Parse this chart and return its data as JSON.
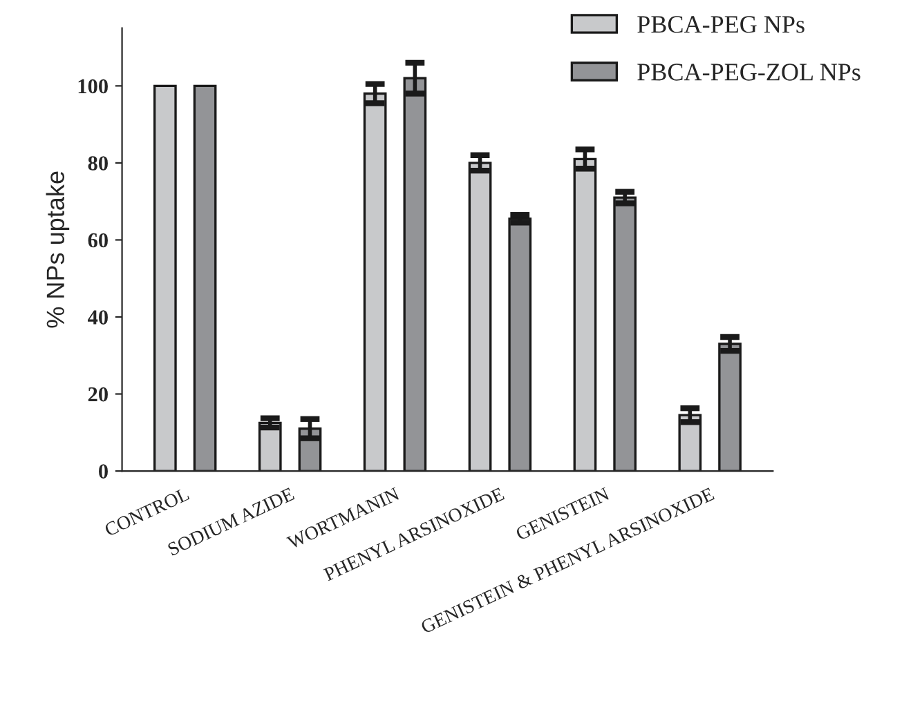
{
  "chart_data": {
    "type": "bar",
    "ylabel": "% NPs uptake",
    "categories": [
      "CONTROL",
      "SODIUM AZIDE",
      "WORTMANIN",
      "PHENYL ARSINOXIDE",
      "GENISTEIN",
      "GENISTEIN & PHENYL ARSINOXIDE"
    ],
    "series": [
      {
        "name": "PBCA-PEG NPs",
        "color": "#c8c9cb",
        "values": [
          100,
          12.5,
          98,
          80,
          81,
          14.5
        ],
        "errors": [
          null,
          1.2,
          2.5,
          2,
          2.5,
          1.8
        ]
      },
      {
        "name": "PBCA-PEG-ZOL NPs",
        "color": "#939497",
        "values": [
          100,
          11,
          102,
          65.5,
          71,
          33
        ],
        "errors": [
          null,
          2.5,
          4,
          1,
          1.5,
          1.8
        ]
      }
    ],
    "ylim": [
      0,
      115
    ],
    "yticks": [
      0,
      20,
      40,
      60,
      80,
      100
    ],
    "grid": false,
    "legend": "top right"
  }
}
